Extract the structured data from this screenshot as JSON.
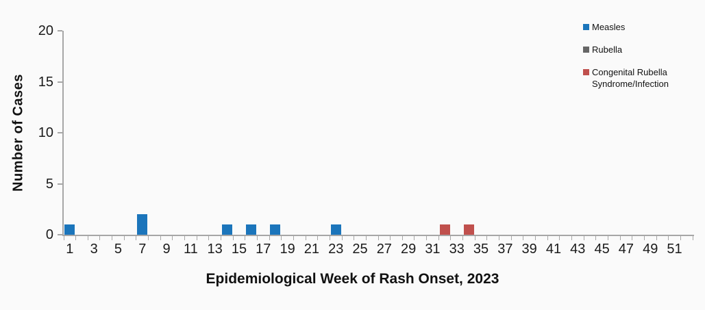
{
  "figure": {
    "background_color": "#fafafa",
    "axis_color": "#a6a6a6",
    "text_color": "#1a1a1a"
  },
  "chart_data": {
    "type": "bar",
    "title": "",
    "xlabel": "Epidemiological Week of Rash Onset, 2023",
    "ylabel": "Number of Cases",
    "x_range": [
      1,
      52
    ],
    "x_tick_labels": [
      1,
      3,
      5,
      7,
      9,
      11,
      13,
      15,
      17,
      19,
      21,
      23,
      25,
      27,
      29,
      31,
      33,
      35,
      37,
      39,
      41,
      43,
      45,
      47,
      49,
      51
    ],
    "ylim": [
      0,
      20
    ],
    "y_ticks": [
      0,
      5,
      10,
      15,
      20
    ],
    "grid": false,
    "legend_position": "top-right",
    "series": [
      {
        "name": "Measles",
        "color": "#1b75bb",
        "points": [
          {
            "week": 1,
            "cases": 1
          },
          {
            "week": 7,
            "cases": 2
          },
          {
            "week": 14,
            "cases": 1
          },
          {
            "week": 16,
            "cases": 1
          },
          {
            "week": 18,
            "cases": 1
          },
          {
            "week": 23,
            "cases": 1
          }
        ]
      },
      {
        "name": "Rubella",
        "color": "#666666",
        "points": []
      },
      {
        "name": "Congenital Rubella Syndrome/Infection",
        "color": "#c0504d",
        "points": [
          {
            "week": 32,
            "cases": 1
          },
          {
            "week": 34,
            "cases": 1
          }
        ]
      }
    ]
  },
  "legend": {
    "items": [
      {
        "label": "Measles",
        "color": "#1b75bb"
      },
      {
        "label": "Rubella",
        "color": "#666666"
      },
      {
        "label": "Congenital Rubella Syndrome/Infection",
        "color": "#c0504d"
      }
    ]
  }
}
